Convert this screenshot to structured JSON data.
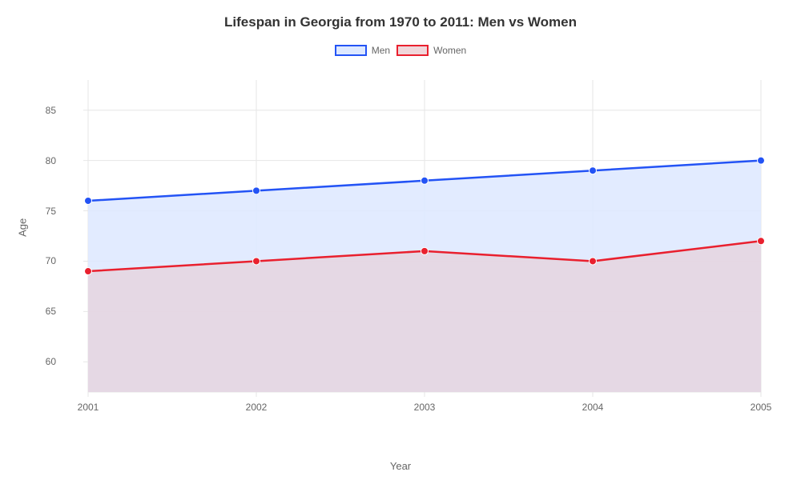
{
  "chart": {
    "type": "area-line",
    "title": "Lifespan in Georgia from 1970 to 2011: Men vs Women",
    "title_fontsize": 17,
    "title_color": "#333333",
    "background_color": "#ffffff",
    "plot_background": "#ffffff",
    "grid_color": "#e6e6e6",
    "axis_line_color": "#e6e6e6",
    "tick_color": "#e6e6e6",
    "label_color": "#666666",
    "xlabel": "Year",
    "ylabel": "Age",
    "label_fontsize": 13,
    "tick_fontsize": 12,
    "x_categories": [
      "2001",
      "2002",
      "2003",
      "2004",
      "2005"
    ],
    "ylim": [
      57,
      88
    ],
    "yticks": [
      60,
      65,
      70,
      75,
      80,
      85
    ],
    "line_width": 2.5,
    "marker_radius": 4.5,
    "marker_style": "circle",
    "legend": {
      "position": "top-center",
      "swatch_width": 40,
      "swatch_height": 14,
      "fontsize": 12,
      "items": [
        {
          "label": "Men",
          "border_color": "#2353f5",
          "fill_color": "#dde8ff"
        },
        {
          "label": "Women",
          "border_color": "#e9202e",
          "fill_color": "#f0d6da"
        }
      ]
    },
    "series": [
      {
        "name": "Men",
        "values": [
          76,
          77,
          78,
          79,
          80
        ],
        "line_color": "#2353f5",
        "marker_fill": "#2353f5",
        "area_fill": "#dde8ff",
        "area_opacity": 0.85
      },
      {
        "name": "Women",
        "values": [
          69,
          70,
          71,
          70,
          72
        ],
        "line_color": "#e9202e",
        "marker_fill": "#e9202e",
        "area_fill": "#e7d0d9",
        "area_opacity": 0.7
      }
    ]
  }
}
